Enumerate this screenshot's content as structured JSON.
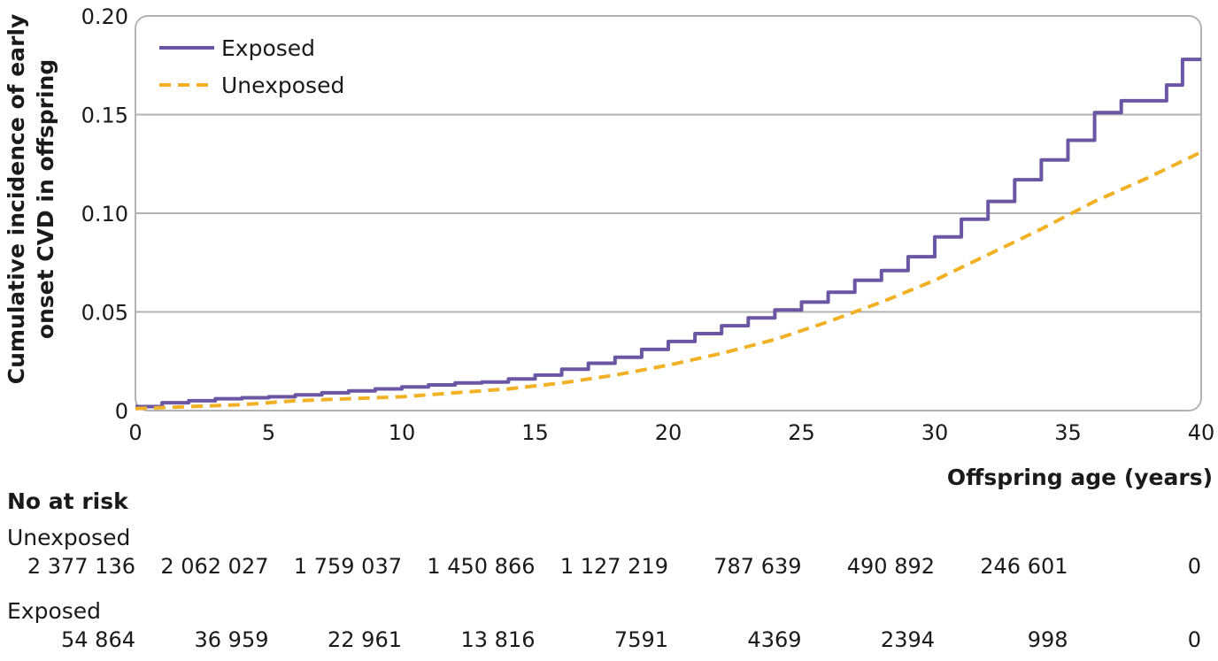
{
  "chart_data": {
    "type": "line",
    "title": "",
    "xlabel": "Offspring age (years)",
    "ylabel_line1": "Cumulative incidence of early",
    "ylabel_line2": "onset CVD in offspring",
    "xlim": [
      0,
      40
    ],
    "ylim": [
      0,
      0.2
    ],
    "x_ticks": [
      0,
      5,
      10,
      15,
      20,
      25,
      30,
      35,
      40
    ],
    "x_tick_labels": [
      "0",
      "5",
      "10",
      "15",
      "20",
      "25",
      "30",
      "35",
      "40"
    ],
    "y_ticks": [
      0,
      0.05,
      0.1,
      0.15,
      0.2
    ],
    "y_tick_labels": [
      "0",
      "0.05",
      "0.10",
      "0.15",
      "0.20"
    ],
    "grid": "horizontal",
    "legend_position": "top-left",
    "series": [
      {
        "name": "Exposed",
        "color": "#6b56a3",
        "line_style": "solid",
        "step": true,
        "x": [
          0,
          1,
          2,
          3,
          4,
          5,
          6,
          7,
          8,
          9,
          10,
          11,
          12,
          13,
          14,
          15,
          16,
          17,
          18,
          19,
          20,
          21,
          22,
          23,
          24,
          25,
          26,
          27,
          28,
          29,
          30,
          31,
          32,
          33,
          34,
          35,
          36,
          37,
          38,
          38.7,
          39.3,
          40
        ],
        "values": [
          0.002,
          0.004,
          0.005,
          0.006,
          0.0065,
          0.007,
          0.008,
          0.009,
          0.01,
          0.011,
          0.012,
          0.013,
          0.014,
          0.0145,
          0.016,
          0.018,
          0.021,
          0.024,
          0.027,
          0.031,
          0.035,
          0.039,
          0.043,
          0.047,
          0.051,
          0.055,
          0.06,
          0.066,
          0.071,
          0.078,
          0.088,
          0.097,
          0.106,
          0.117,
          0.127,
          0.137,
          0.151,
          0.157,
          0.157,
          0.165,
          0.178,
          0.178
        ]
      },
      {
        "name": "Unexposed",
        "color": "#f2b124",
        "line_style": "dashed",
        "step": false,
        "x": [
          0,
          2,
          4,
          6,
          8,
          10,
          12,
          14,
          16,
          18,
          20,
          22,
          24,
          26,
          28,
          30,
          32,
          34,
          36,
          38,
          40
        ],
        "values": [
          0.001,
          0.002,
          0.003,
          0.005,
          0.006,
          0.007,
          0.009,
          0.011,
          0.014,
          0.018,
          0.023,
          0.029,
          0.036,
          0.045,
          0.055,
          0.066,
          0.079,
          0.092,
          0.106,
          0.118,
          0.131
        ]
      }
    ]
  },
  "risk_table": {
    "heading": "No at risk",
    "rows": [
      {
        "label": "Unexposed",
        "values": [
          "2 377 136",
          "2 062 027",
          "1 759 037",
          "1 450 866",
          "1 127 219",
          "787 639",
          "490 892",
          "246 601",
          "0"
        ]
      },
      {
        "label": "Exposed",
        "values": [
          "54 864",
          "36 959",
          "22 961",
          "13 816",
          "7591",
          "4369",
          "2394",
          "998",
          "0"
        ]
      }
    ]
  }
}
